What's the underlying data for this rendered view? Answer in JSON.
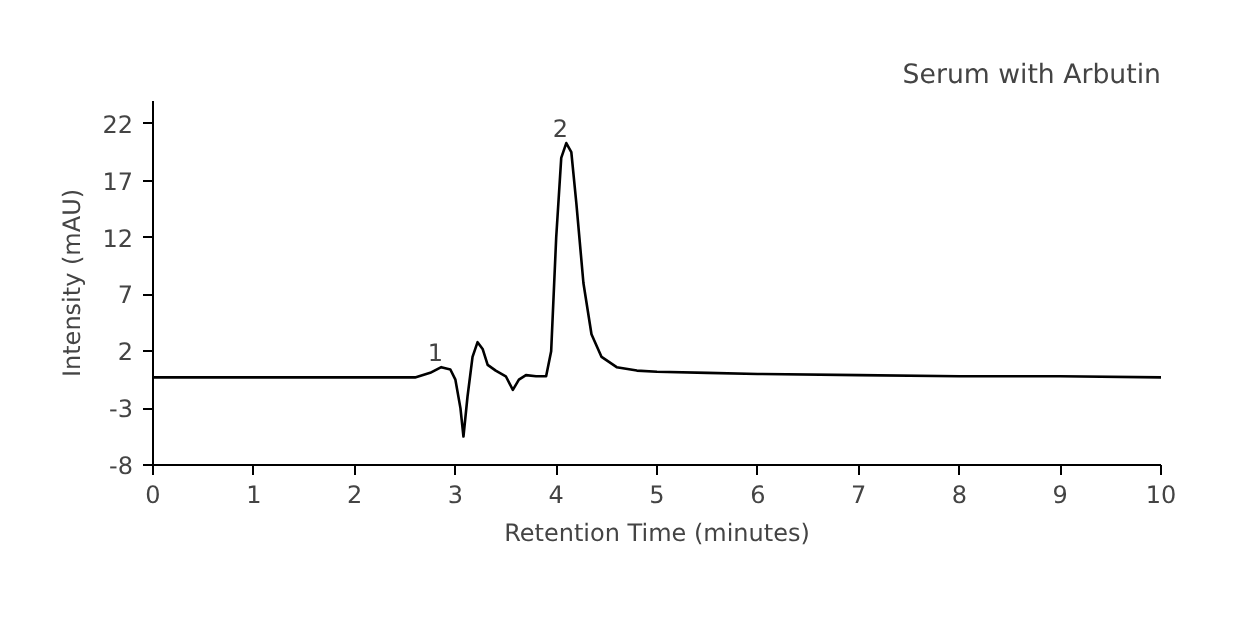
{
  "chart_data": {
    "type": "line",
    "title": "Serum with Arbutin",
    "xlabel": "Retention Time (minutes)",
    "ylabel": "Intensity (mAU)",
    "x": [
      0,
      1,
      2,
      2.6,
      2.75,
      2.86,
      2.95,
      3.0,
      3.05,
      3.08,
      3.12,
      3.17,
      3.22,
      3.27,
      3.32,
      3.4,
      3.5,
      3.57,
      3.63,
      3.7,
      3.8,
      3.9,
      3.95,
      4.0,
      4.05,
      4.1,
      4.15,
      4.2,
      4.27,
      4.35,
      4.45,
      4.6,
      4.8,
      5.0,
      5.5,
      6,
      7,
      8,
      9,
      10
    ],
    "series": [
      {
        "color": "#000000",
        "values": [
          -0.3,
          -0.3,
          -0.3,
          -0.3,
          0.1,
          0.6,
          0.4,
          -0.5,
          -3,
          -5.5,
          -2,
          1.5,
          2.8,
          2.2,
          0.8,
          0.3,
          -0.2,
          -1.4,
          -0.5,
          -0.1,
          -0.2,
          -0.2,
          2,
          12,
          19,
          20.3,
          19.5,
          15,
          8,
          3.5,
          1.5,
          0.6,
          0.3,
          0.2,
          0.1,
          0,
          -0.1,
          -0.2,
          -0.2,
          -0.3
        ]
      }
    ],
    "annotations": [
      {
        "text": "1",
        "x": 2.86,
        "y": 0.6
      },
      {
        "text": "2",
        "x": 4.1,
        "y": 20.3
      }
    ],
    "xlim": [
      0,
      10
    ],
    "xticks": [
      0,
      1,
      2,
      3,
      4,
      5,
      6,
      7,
      8,
      9,
      10
    ],
    "ylim": [
      -8,
      24
    ],
    "yticks": [
      -8,
      -3,
      2,
      7,
      12,
      17,
      22
    ],
    "grid": false,
    "marker": "none",
    "line_style": "solid"
  }
}
